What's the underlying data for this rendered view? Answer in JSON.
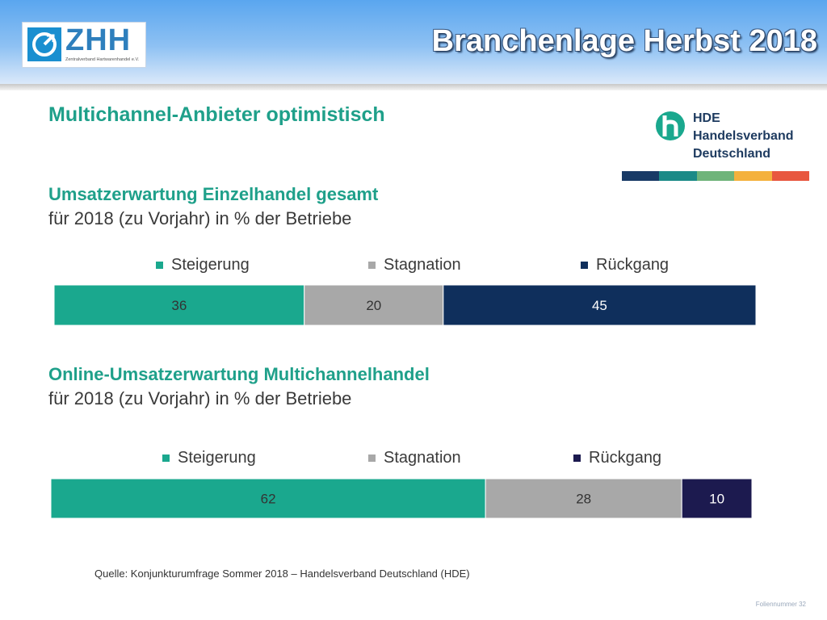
{
  "header": {
    "title": "Branchenlage Herbst 2018",
    "zhh_logo": {
      "letters": "ZHH",
      "subtitle": "Zentralverband Hartwarenhandel e.V."
    }
  },
  "hde_logo": {
    "acronym": "HDE",
    "line1": "Handelsverband",
    "line2": "Deutschland",
    "strip_colors": [
      "#183a66",
      "#1b8a87",
      "#6fb47a",
      "#f4b13d",
      "#e8573f"
    ]
  },
  "main_heading": "Multichannel-Anbieter optimistisch",
  "colors": {
    "steigerung": "#1aa88e",
    "stagnation": "#a8a8a8",
    "rueckgang": "#0f2f5c",
    "heading": "#1fa08a"
  },
  "chart_data": [
    {
      "type": "bar",
      "orientation": "horizontal-stacked",
      "title": "Umsatzerwartung Einzelhandel gesamt",
      "subtitle": "für 2018 (zu Vorjahr) in % der Betriebe",
      "legend_position": "top",
      "series": [
        {
          "name": "Steigerung",
          "values": [
            36
          ],
          "color": "#1aa88e"
        },
        {
          "name": "Stagnation",
          "values": [
            20
          ],
          "color": "#a8a8a8"
        },
        {
          "name": "Rückgang",
          "values": [
            45
          ],
          "color": "#0f2f5c"
        }
      ]
    },
    {
      "type": "bar",
      "orientation": "horizontal-stacked",
      "title": "Online-Umsatzerwartung Multichannelhandel",
      "subtitle": "für 2018 (zu Vorjahr) in % der Betriebe",
      "legend_position": "top",
      "series": [
        {
          "name": "Steigerung",
          "values": [
            62
          ],
          "color": "#1aa88e"
        },
        {
          "name": "Stagnation",
          "values": [
            28
          ],
          "color": "#a8a8a8"
        },
        {
          "name": "Rückgang",
          "values": [
            10
          ],
          "color": "#1c1a4f"
        }
      ]
    }
  ],
  "source": "Quelle: Konjunkturumfrage Sommer 2018 – Handelsverband Deutschland (HDE)",
  "footer": "Foliennummer 32"
}
